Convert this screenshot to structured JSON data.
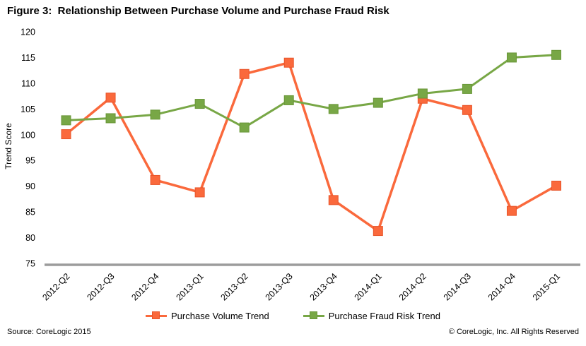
{
  "footer": {
    "source": "Source: CoreLogic 2015",
    "copyright": "© CoreLogic, Inc. All Rights Reserved"
  },
  "chart_data": {
    "type": "line",
    "title": "Figure 3:  Relationship Between Purchase Volume and Purchase Fraud Risk",
    "xlabel": "",
    "ylabel": "Trend  Score",
    "ylim": [
      75,
      120
    ],
    "y_ticks": [
      75,
      80,
      85,
      90,
      95,
      100,
      105,
      110,
      115,
      120
    ],
    "grid": false,
    "legend_position": "bottom",
    "axis_color": "#9C9C9C",
    "categories": [
      "2012-Q2",
      "2012-Q3",
      "2012-Q4",
      "2013-Q1",
      "2013-Q2",
      "2013-Q3",
      "2013-Q4",
      "2014-Q1",
      "2014-Q2",
      "2014-Q3",
      "2014-Q4",
      "2015-Q1"
    ],
    "series": [
      {
        "name": "Purchase Volume Trend",
        "color": "#FA693C",
        "marker_stroke": "#E8552A",
        "values": [
          100.1,
          107.2,
          91.2,
          88.8,
          111.8,
          114.0,
          87.3,
          81.3,
          107.0,
          104.8,
          85.2,
          90.1
        ]
      },
      {
        "name": "Purchase Fraud Risk Trend",
        "color": "#78A746",
        "marker_stroke": "#699638",
        "values": [
          102.8,
          103.2,
          103.9,
          106.0,
          101.4,
          106.7,
          105.0,
          106.2,
          108.0,
          108.9,
          115.0,
          115.5
        ]
      }
    ]
  }
}
